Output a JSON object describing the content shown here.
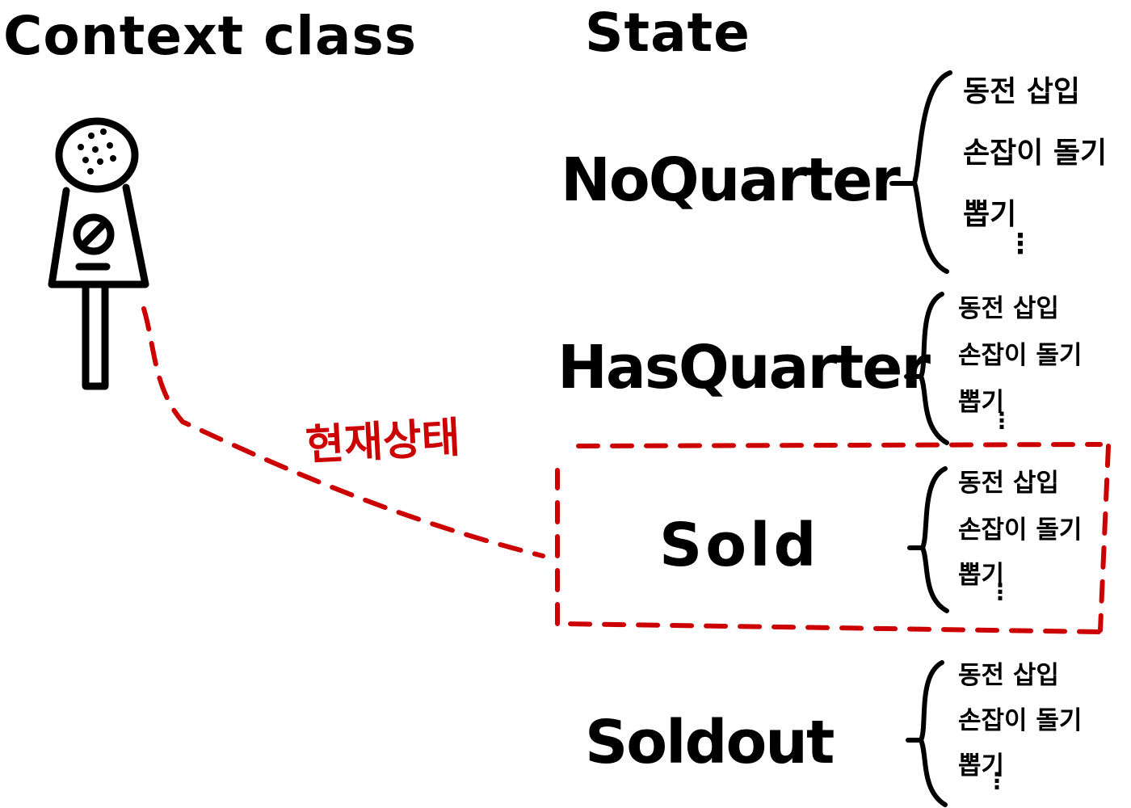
{
  "headings": {
    "context": "Context class",
    "state": "State"
  },
  "current_state_label": "현재상태",
  "states": [
    {
      "name": "NoQuarter",
      "methods": [
        "동전 삽입",
        "손잡이 돌기",
        "뽑기"
      ],
      "more": "⋮"
    },
    {
      "name": "HasQuarter",
      "methods": [
        "동전 삽입",
        "손잡이 돌기",
        "뽑기"
      ],
      "more": "⋮"
    },
    {
      "name": "Sold",
      "methods": [
        "동전 삽입",
        "손잡이 돌기",
        "뽑기"
      ],
      "more": "⋮"
    },
    {
      "name": "Soldout",
      "methods": [
        "동전 삽입",
        "손잡이 돌기",
        "뽑기"
      ],
      "more": "⋮"
    }
  ],
  "colors": {
    "ink": "#000000",
    "highlight": "#cc0000"
  },
  "icons": [
    "gumball-machine-icon"
  ]
}
